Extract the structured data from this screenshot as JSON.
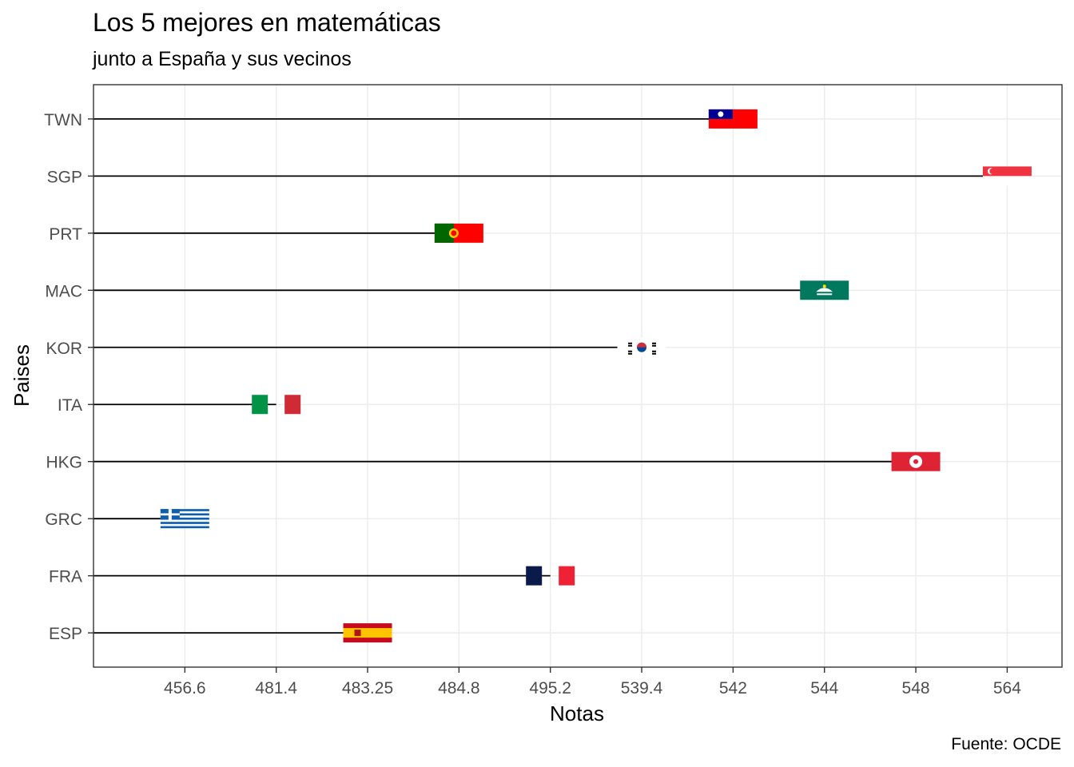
{
  "chart_data": {
    "type": "lollipop",
    "title": "Los 5 mejores en matemáticas",
    "subtitle": "junto a España y sus vecinos",
    "caption": "Fuente: OCDE",
    "xlabel": "Notas",
    "ylabel": "Paises",
    "x_scale": "discrete",
    "x_ticks": [
      "456.6",
      "481.4",
      "483.25",
      "484.8",
      "495.2",
      "539.4",
      "542",
      "544",
      "548",
      "564"
    ],
    "categories": [
      "ESP",
      "FRA",
      "GRC",
      "HKG",
      "ITA",
      "KOR",
      "MAC",
      "PRT",
      "SGP",
      "TWN"
    ],
    "points": [
      {
        "country": "ESP",
        "value": 483.25,
        "flag": "spain-flag"
      },
      {
        "country": "FRA",
        "value": 495.2,
        "flag": "france-flag"
      },
      {
        "country": "GRC",
        "value": 456.6,
        "flag": "greece-flag"
      },
      {
        "country": "HKG",
        "value": 548,
        "flag": "hong-kong-flag"
      },
      {
        "country": "ITA",
        "value": 481.4,
        "flag": "italy-flag"
      },
      {
        "country": "KOR",
        "value": 539.4,
        "flag": "south-korea-flag"
      },
      {
        "country": "MAC",
        "value": 544,
        "flag": "macau-flag"
      },
      {
        "country": "PRT",
        "value": 484.8,
        "flag": "portugal-flag"
      },
      {
        "country": "SGP",
        "value": 564,
        "flag": "singapore-flag"
      },
      {
        "country": "TWN",
        "value": 542,
        "flag": "taiwan-flag"
      }
    ],
    "grid": true
  }
}
